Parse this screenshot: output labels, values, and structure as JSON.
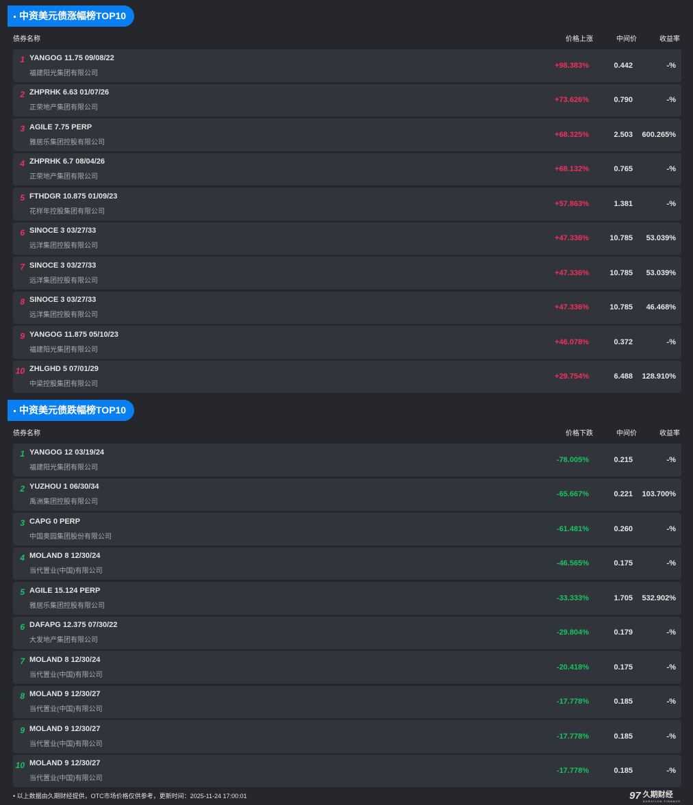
{
  "gainers": {
    "title": "中资美元债涨幅榜TOP10",
    "headers": {
      "name": "债券名称",
      "change": "价格上涨",
      "mid": "中间价",
      "yield": "收益率"
    },
    "rows": [
      {
        "rank": "1",
        "bond": "YANGOG 11.75 09/08/22",
        "issuer": "福建阳光集团有限公司",
        "change": "+98.383%",
        "mid": "0.442",
        "yield": "-%"
      },
      {
        "rank": "2",
        "bond": "ZHPRHK 6.63 01/07/26",
        "issuer": "正荣地产集团有限公司",
        "change": "+73.626%",
        "mid": "0.790",
        "yield": "-%"
      },
      {
        "rank": "3",
        "bond": "AGILE 7.75 PERP",
        "issuer": "雅居乐集团控股有限公司",
        "change": "+68.325%",
        "mid": "2.503",
        "yield": "600.265%"
      },
      {
        "rank": "4",
        "bond": "ZHPRHK 6.7 08/04/26",
        "issuer": "正荣地产集团有限公司",
        "change": "+68.132%",
        "mid": "0.765",
        "yield": "-%"
      },
      {
        "rank": "5",
        "bond": "FTHDGR 10.875 01/09/23",
        "issuer": "花样年控股集团有限公司",
        "change": "+57.863%",
        "mid": "1.381",
        "yield": "-%"
      },
      {
        "rank": "6",
        "bond": "SINOCE 3 03/27/33",
        "issuer": "远洋集团控股有限公司",
        "change": "+47.336%",
        "mid": "10.785",
        "yield": "53.039%"
      },
      {
        "rank": "7",
        "bond": "SINOCE 3 03/27/33",
        "issuer": "远洋集团控股有限公司",
        "change": "+47.336%",
        "mid": "10.785",
        "yield": "53.039%"
      },
      {
        "rank": "8",
        "bond": "SINOCE 3 03/27/33",
        "issuer": "远洋集团控股有限公司",
        "change": "+47.336%",
        "mid": "10.785",
        "yield": "46.468%"
      },
      {
        "rank": "9",
        "bond": "YANGOG 11.875 05/10/23",
        "issuer": "福建阳光集团有限公司",
        "change": "+46.078%",
        "mid": "0.372",
        "yield": "-%"
      },
      {
        "rank": "10",
        "bond": "ZHLGHD 5 07/01/29",
        "issuer": "中梁控股集团有限公司",
        "change": "+29.754%",
        "mid": "6.488",
        "yield": "128.910%"
      }
    ]
  },
  "losers": {
    "title": "中资美元债跌幅榜TOP10",
    "headers": {
      "name": "债券名称",
      "change": "价格下跌",
      "mid": "中间价",
      "yield": "收益率"
    },
    "rows": [
      {
        "rank": "1",
        "bond": "YANGOG 12 03/19/24",
        "issuer": "福建阳光集团有限公司",
        "change": "-78.005%",
        "mid": "0.215",
        "yield": "-%"
      },
      {
        "rank": "2",
        "bond": "YUZHOU 1 06/30/34",
        "issuer": "禹洲集团控股有限公司",
        "change": "-65.667%",
        "mid": "0.221",
        "yield": "103.700%"
      },
      {
        "rank": "3",
        "bond": "CAPG 0 PERP",
        "issuer": "中国奥园集团股份有限公司",
        "change": "-61.481%",
        "mid": "0.260",
        "yield": "-%"
      },
      {
        "rank": "4",
        "bond": "MOLAND 8 12/30/24",
        "issuer": "当代置业(中国)有限公司",
        "change": "-46.565%",
        "mid": "0.175",
        "yield": "-%"
      },
      {
        "rank": "5",
        "bond": "AGILE 15.124 PERP",
        "issuer": "雅居乐集团控股有限公司",
        "change": "-33.333%",
        "mid": "1.705",
        "yield": "532.902%"
      },
      {
        "rank": "6",
        "bond": "DAFAPG 12.375 07/30/22",
        "issuer": "大发地产集团有限公司",
        "change": "-29.804%",
        "mid": "0.179",
        "yield": "-%"
      },
      {
        "rank": "7",
        "bond": "MOLAND 8 12/30/24",
        "issuer": "当代置业(中国)有限公司",
        "change": "-20.418%",
        "mid": "0.175",
        "yield": "-%"
      },
      {
        "rank": "8",
        "bond": "MOLAND 9 12/30/27",
        "issuer": "当代置业(中国)有限公司",
        "change": "-17.778%",
        "mid": "0.185",
        "yield": "-%"
      },
      {
        "rank": "9",
        "bond": "MOLAND 9 12/30/27",
        "issuer": "当代置业(中国)有限公司",
        "change": "-17.778%",
        "mid": "0.185",
        "yield": "-%"
      },
      {
        "rank": "10",
        "bond": "MOLAND 9 12/30/27",
        "issuer": "当代置业(中国)有限公司",
        "change": "-17.778%",
        "mid": "0.185",
        "yield": "-%"
      }
    ]
  },
  "footer": {
    "note": "以上数据由久期财经提供，OTC市场价格仅供参考，更新时间：2025-11-24 17:00:01",
    "logo_text": "久期财经",
    "logo_sub": "DURATION FINANCE"
  },
  "colors": {
    "up": "#f0325a",
    "down": "#18c45e",
    "accent": "#0a7ff0"
  }
}
